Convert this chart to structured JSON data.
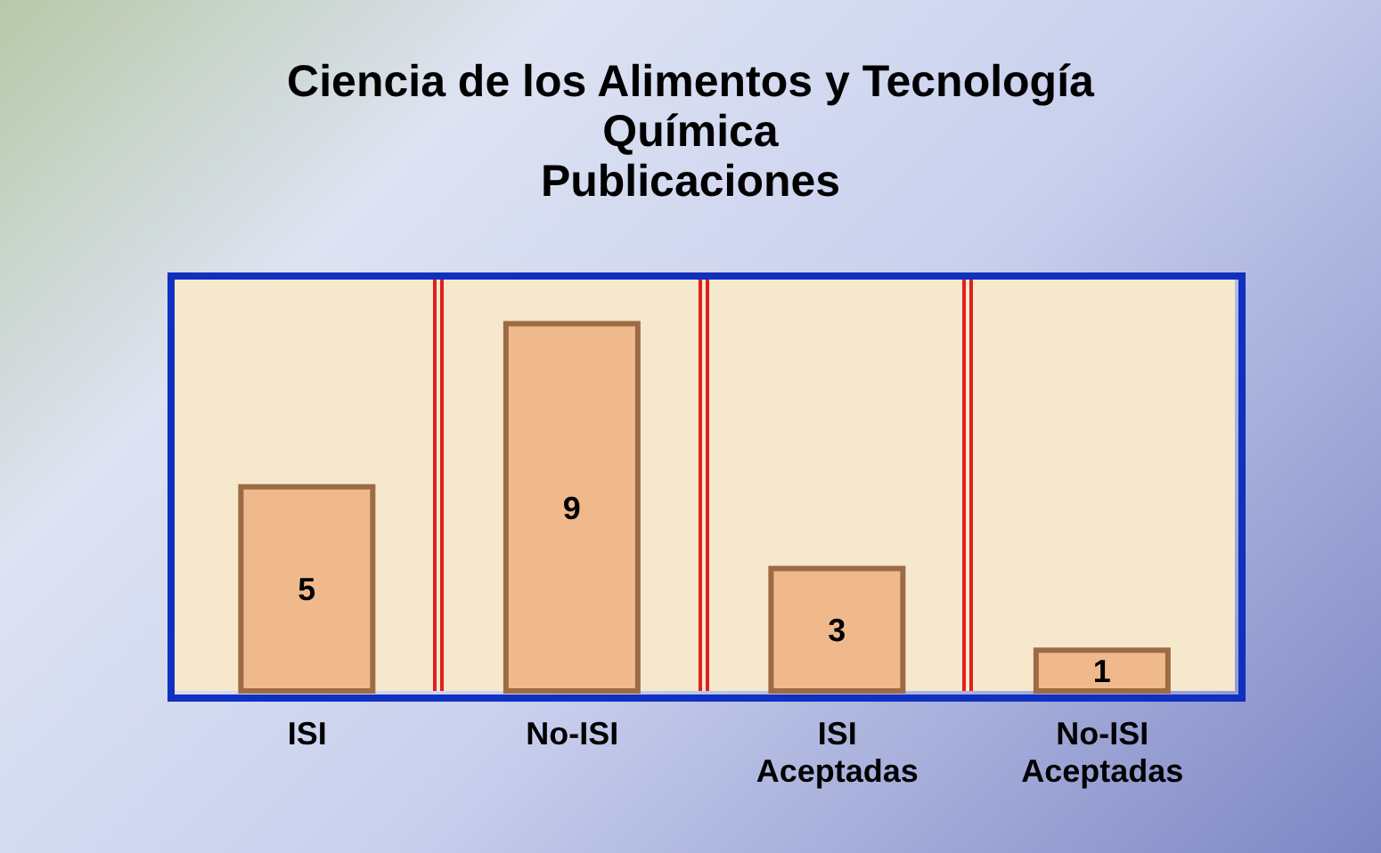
{
  "chart_data": {
    "type": "bar",
    "title": "Ciencia de los Alimentos y Tecnología Química",
    "subtitle": "Publicaciones",
    "categories": [
      "ISI",
      "No-ISI",
      "ISI Aceptadas",
      "No-ISI Aceptadas"
    ],
    "values": [
      5,
      9,
      3,
      1
    ],
    "color": "#f0b98c",
    "data_labels": true,
    "grid": false
  }
}
